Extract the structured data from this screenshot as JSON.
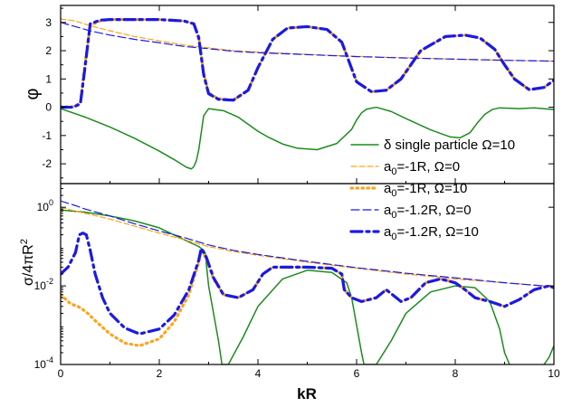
{
  "chart_data": [
    {
      "panel": "top",
      "type": "line",
      "xlabel": "",
      "ylabel": "φ",
      "xlim": [
        0,
        10
      ],
      "ylim": [
        -2.7,
        3.6
      ],
      "yticks": [
        "3",
        "2",
        "1",
        "0",
        "-1",
        "-2"
      ],
      "ytick_values": [
        3,
        2,
        1,
        0,
        -1,
        -2
      ],
      "series": [
        {
          "ref": "delta",
          "x": [
            0,
            0.5,
            1.0,
            1.5,
            2.0,
            2.3,
            2.55,
            2.65,
            2.7,
            2.75,
            2.8,
            2.85,
            2.9,
            3.0,
            3.3,
            3.6,
            4.0,
            4.2,
            4.5,
            4.8,
            5.2,
            5.6,
            5.9,
            6.0,
            6.1,
            6.2,
            6.4,
            6.7,
            7.0,
            7.5,
            7.9,
            8.1,
            8.3,
            8.45,
            8.6,
            8.75,
            8.9,
            9.3,
            9.6,
            10.0
          ],
          "values": [
            -0.05,
            -0.35,
            -0.7,
            -1.1,
            -1.55,
            -1.85,
            -2.12,
            -2.18,
            -2.1,
            -1.9,
            -1.5,
            -0.9,
            -0.3,
            -0.05,
            -0.12,
            -0.35,
            -0.85,
            -1.05,
            -1.3,
            -1.45,
            -1.5,
            -1.28,
            -0.78,
            -0.45,
            -0.2,
            -0.07,
            0.0,
            -0.15,
            -0.4,
            -0.8,
            -1.05,
            -1.08,
            -0.9,
            -0.55,
            -0.25,
            -0.08,
            -0.02,
            -0.05,
            -0.02,
            -0.08
          ]
        },
        {
          "ref": "a1_w0",
          "x": [
            0,
            0.3,
            0.6,
            1.0,
            1.5,
            2.0,
            2.5,
            3.0,
            3.5,
            4.0,
            5.0,
            6.0,
            7.0,
            8.0,
            9.0,
            10.0
          ],
          "values": [
            3.12,
            3.05,
            2.88,
            2.7,
            2.5,
            2.35,
            2.2,
            2.1,
            2.0,
            1.95,
            1.87,
            1.8,
            1.75,
            1.7,
            1.66,
            1.63
          ]
        },
        {
          "ref": "a1_w10",
          "x": [
            0,
            0.25,
            0.4,
            0.5,
            0.6,
            0.8,
            1.0,
            2.0,
            2.5,
            2.7,
            2.8,
            2.9,
            3.0,
            3.2,
            3.5,
            3.8,
            4.0,
            4.3,
            4.6,
            5.0,
            5.4,
            5.7,
            5.85,
            6.0,
            6.3,
            6.6,
            6.9,
            7.3,
            7.8,
            8.2,
            8.5,
            8.8,
            9.0,
            9.2,
            9.5,
            9.8,
            10.0
          ],
          "values": [
            0.02,
            0.02,
            0.15,
            1.6,
            2.9,
            3.05,
            3.1,
            3.1,
            3.05,
            2.95,
            2.5,
            1.2,
            0.5,
            0.3,
            0.25,
            0.6,
            1.4,
            2.4,
            2.8,
            2.85,
            2.75,
            2.3,
            1.6,
            0.9,
            0.55,
            0.6,
            1.0,
            2.0,
            2.5,
            2.55,
            2.45,
            2.05,
            1.5,
            1.0,
            0.62,
            0.7,
            0.95
          ]
        },
        {
          "ref": "a12_w0",
          "x": [
            0,
            0.3,
            0.6,
            1.0,
            1.5,
            2.0,
            2.5,
            3.0,
            3.5,
            4.0,
            5.0,
            6.0,
            7.0,
            8.0,
            9.0,
            10.0
          ],
          "values": [
            3.0,
            2.85,
            2.7,
            2.55,
            2.4,
            2.28,
            2.15,
            2.07,
            1.98,
            1.93,
            1.86,
            1.79,
            1.74,
            1.7,
            1.66,
            1.63
          ]
        },
        {
          "ref": "a12_w10",
          "x": [
            0,
            0.25,
            0.4,
            0.5,
            0.6,
            0.8,
            1.0,
            2.0,
            2.5,
            2.7,
            2.8,
            2.9,
            3.0,
            3.2,
            3.5,
            3.8,
            4.0,
            4.3,
            4.6,
            5.0,
            5.4,
            5.7,
            5.85,
            6.0,
            6.3,
            6.6,
            6.9,
            7.3,
            7.8,
            8.2,
            8.5,
            8.8,
            9.0,
            9.2,
            9.5,
            9.8,
            10.0
          ],
          "values": [
            0.0,
            0.0,
            0.12,
            1.5,
            2.95,
            3.08,
            3.1,
            3.1,
            3.05,
            2.95,
            2.45,
            1.15,
            0.48,
            0.28,
            0.25,
            0.6,
            1.4,
            2.4,
            2.8,
            2.85,
            2.75,
            2.3,
            1.6,
            0.9,
            0.55,
            0.6,
            1.0,
            2.0,
            2.5,
            2.55,
            2.45,
            2.05,
            1.5,
            1.0,
            0.62,
            0.7,
            0.95
          ]
        }
      ]
    },
    {
      "panel": "bottom",
      "type": "line",
      "scale": "log",
      "xlabel": "kR",
      "ylabel": "σ/4πR²",
      "xlim": [
        0,
        10
      ],
      "ylim": [
        0.0001,
        4
      ],
      "xticks": [
        "0",
        "2",
        "4",
        "6",
        "8",
        "10"
      ],
      "xtick_values": [
        0,
        2,
        4,
        6,
        8,
        10
      ],
      "yticks": [
        "10^0",
        "10^-2",
        "10^-4"
      ],
      "ytick_values": [
        1,
        0.01,
        0.0001
      ],
      "series": [
        {
          "ref": "delta",
          "x": [
            0,
            0.5,
            1.0,
            1.5,
            2.0,
            2.5,
            2.8,
            2.9,
            2.93,
            3.0,
            3.1,
            3.2,
            3.25,
            3.27,
            3.4,
            3.7,
            4.0,
            4.5,
            5.0,
            5.5,
            5.8,
            5.9,
            6.0,
            6.1,
            6.15,
            6.4,
            6.7,
            7.0,
            7.5,
            8.0,
            8.4,
            8.7,
            8.9,
            9.0,
            9.1
          ],
          "values": [
            0.85,
            0.75,
            0.6,
            0.45,
            0.3,
            0.15,
            0.1,
            0.08,
            0.07,
            0.01,
            0.002,
            0.0004,
            0.00015,
            0.0001,
            0.0001,
            0.0005,
            0.003,
            0.015,
            0.025,
            0.022,
            0.012,
            0.005,
            0.001,
            0.0002,
            0.0001,
            0.0001,
            0.0004,
            0.002,
            0.007,
            0.01,
            0.009,
            0.004,
            0.0008,
            0.0002,
            0.0001
          ]
        },
        {
          "ref": "delta",
          "x": [
            9.8,
            9.9,
            10.0
          ],
          "values": [
            0.0001,
            0.00015,
            0.0003
          ]
        },
        {
          "ref": "a1_w0",
          "x": [
            0,
            0.3,
            0.5,
            1.0,
            1.5,
            2.0,
            2.5,
            3.0,
            3.5,
            4.0,
            5.0,
            6.0,
            7.0,
            8.0,
            9.0,
            10.0
          ],
          "values": [
            1.0,
            0.8,
            0.7,
            0.5,
            0.33,
            0.22,
            0.15,
            0.1,
            0.075,
            0.06,
            0.04,
            0.028,
            0.02,
            0.015,
            0.012,
            0.0095
          ]
        },
        {
          "ref": "a1_w10",
          "x": [
            0,
            0.2,
            0.35,
            0.45,
            0.55,
            0.7,
            1.0,
            1.3,
            1.6,
            2.0,
            2.3,
            2.6,
            2.8,
            2.85,
            2.95,
            3.1,
            3.3,
            3.6,
            3.9,
            4.1,
            4.3,
            4.5,
            5.0,
            5.5,
            5.7,
            5.75,
            5.9,
            6.1,
            6.4,
            6.6,
            6.9,
            7.1,
            7.4,
            7.7,
            8.0,
            8.2,
            8.4,
            8.7,
            9.0,
            9.3,
            9.6,
            9.9,
            10.0
          ],
          "values": [
            0.006,
            0.0035,
            0.003,
            0.0025,
            0.002,
            0.0013,
            0.0006,
            0.00035,
            0.0003,
            0.00045,
            0.0012,
            0.006,
            0.04,
            0.08,
            0.05,
            0.015,
            0.006,
            0.005,
            0.008,
            0.02,
            0.03,
            0.03,
            0.03,
            0.028,
            0.02,
            0.008,
            0.005,
            0.004,
            0.005,
            0.008,
            0.004,
            0.005,
            0.012,
            0.015,
            0.012,
            0.008,
            0.005,
            0.004,
            0.003,
            0.0045,
            0.008,
            0.01,
            0.009
          ]
        },
        {
          "ref": "a12_w0",
          "x": [
            0,
            0.3,
            0.5,
            1.0,
            1.5,
            2.0,
            2.5,
            3.0,
            3.5,
            4.0,
            5.0,
            6.0,
            7.0,
            8.0,
            9.0,
            10.0
          ],
          "values": [
            1.45,
            1.1,
            0.9,
            0.6,
            0.38,
            0.25,
            0.17,
            0.11,
            0.08,
            0.063,
            0.042,
            0.029,
            0.021,
            0.016,
            0.012,
            0.0095
          ]
        },
        {
          "ref": "a12_w10",
          "x": [
            0,
            0.15,
            0.3,
            0.38,
            0.45,
            0.52,
            0.6,
            0.7,
            0.85,
            1.0,
            1.3,
            1.6,
            2.0,
            2.3,
            2.6,
            2.8,
            2.85,
            2.95,
            3.1,
            3.3,
            3.6,
            3.9,
            4.1,
            4.3,
            4.5,
            5.0,
            5.5,
            5.7,
            5.75,
            5.9,
            6.1,
            6.4,
            6.6,
            6.9,
            7.1,
            7.4,
            7.7,
            8.0,
            8.2,
            8.4,
            8.7,
            9.0,
            9.3,
            9.6,
            9.9,
            10.0
          ],
          "values": [
            0.02,
            0.03,
            0.07,
            0.2,
            0.22,
            0.2,
            0.08,
            0.02,
            0.005,
            0.002,
            0.00085,
            0.0006,
            0.0008,
            0.0018,
            0.008,
            0.045,
            0.09,
            0.055,
            0.016,
            0.006,
            0.005,
            0.008,
            0.02,
            0.03,
            0.03,
            0.03,
            0.028,
            0.02,
            0.008,
            0.005,
            0.004,
            0.005,
            0.008,
            0.004,
            0.005,
            0.012,
            0.015,
            0.012,
            0.008,
            0.005,
            0.004,
            0.003,
            0.0045,
            0.008,
            0.01,
            0.009
          ]
        }
      ]
    }
  ],
  "legend": {
    "entries": [
      {
        "ref": "delta",
        "pre": "δ single particle Ω=10",
        "sub": "",
        "post": "",
        "color": "#1c8c1c",
        "width": 1.5,
        "dash": ""
      },
      {
        "ref": "a1_w0",
        "pre": "a",
        "sub": "0",
        "post": "=-1R, Ω=0",
        "color": "#ffa31a",
        "width": 1.2,
        "dash": "6 3"
      },
      {
        "ref": "a1_w10",
        "pre": "a",
        "sub": "0",
        "post": "=-1R, Ω=10",
        "color": "#ffa31a",
        "width": 3.2,
        "dash": "1.5 4.5"
      },
      {
        "ref": "a12_w0",
        "pre": "a",
        "sub": "0",
        "post": "=-1.2R, Ω=0",
        "color": "#1a1ae6",
        "width": 1.2,
        "dash": "9 4"
      },
      {
        "ref": "a12_w10",
        "pre": "a",
        "sub": "0",
        "post": "=-1.2R, Ω=10",
        "color": "#1a1ae6",
        "width": 3.2,
        "dash": "12 5 3 5"
      }
    ]
  }
}
